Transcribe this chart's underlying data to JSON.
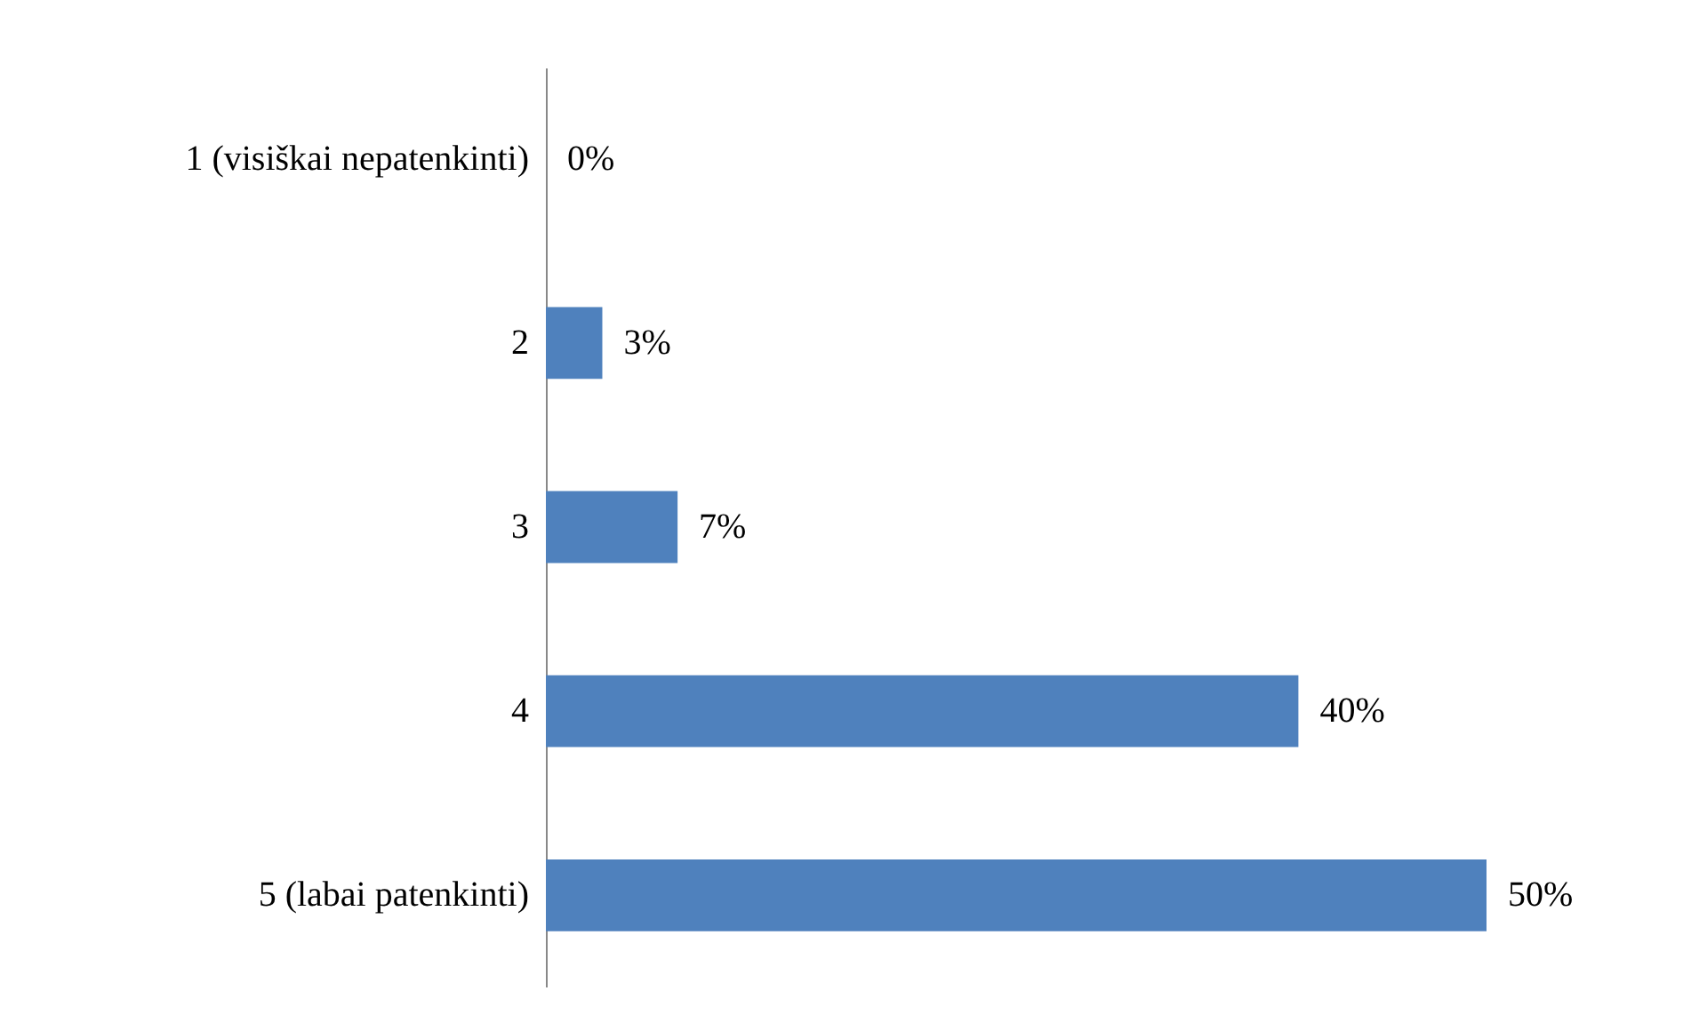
{
  "chart_data": {
    "type": "bar",
    "orientation": "horizontal",
    "categories": [
      "1 (visiškai nepatenkinti)",
      "2",
      "3",
      "4",
      "5 (labai patenkinti)"
    ],
    "values": [
      0,
      3,
      7,
      40,
      50
    ],
    "value_labels": [
      "0%",
      "3%",
      "7%",
      "40%",
      "50%"
    ],
    "color": "#4f81bd",
    "tick_labels": "y"
  }
}
